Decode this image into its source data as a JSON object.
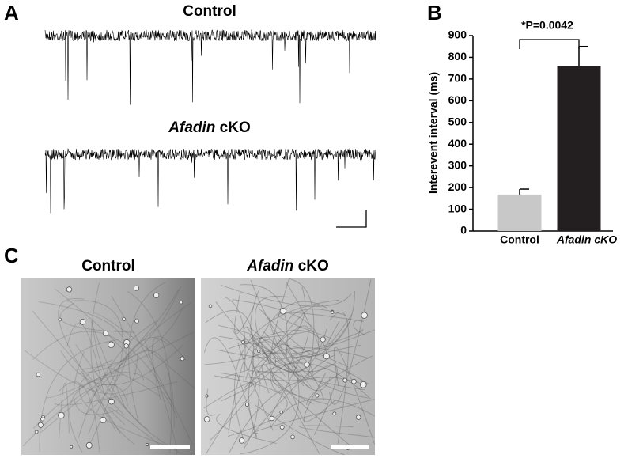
{
  "panel_a": {
    "label": "A",
    "titles": [
      {
        "plain": "Control"
      },
      {
        "gene": "Afadin",
        "rest": "cKO"
      }
    ]
  },
  "panel_c": {
    "label": "C",
    "titles": [
      {
        "plain": "Control"
      },
      {
        "gene": "Afadin",
        "rest": "cKO"
      }
    ]
  },
  "chart_data": {
    "type": "bar",
    "label": "B",
    "categories": [
      "Control",
      "Afadin cKO"
    ],
    "values": [
      168,
      760
    ],
    "errors": [
      25,
      90
    ],
    "colors": [
      "#c8c8c8",
      "#231f20"
    ],
    "ylabel": "Interevent interval (ms)",
    "annotation": "*P=0.0042",
    "ylim": [
      0,
      900
    ],
    "yticks": [
      0,
      100,
      200,
      300,
      400,
      500,
      600,
      700,
      800,
      900
    ]
  }
}
